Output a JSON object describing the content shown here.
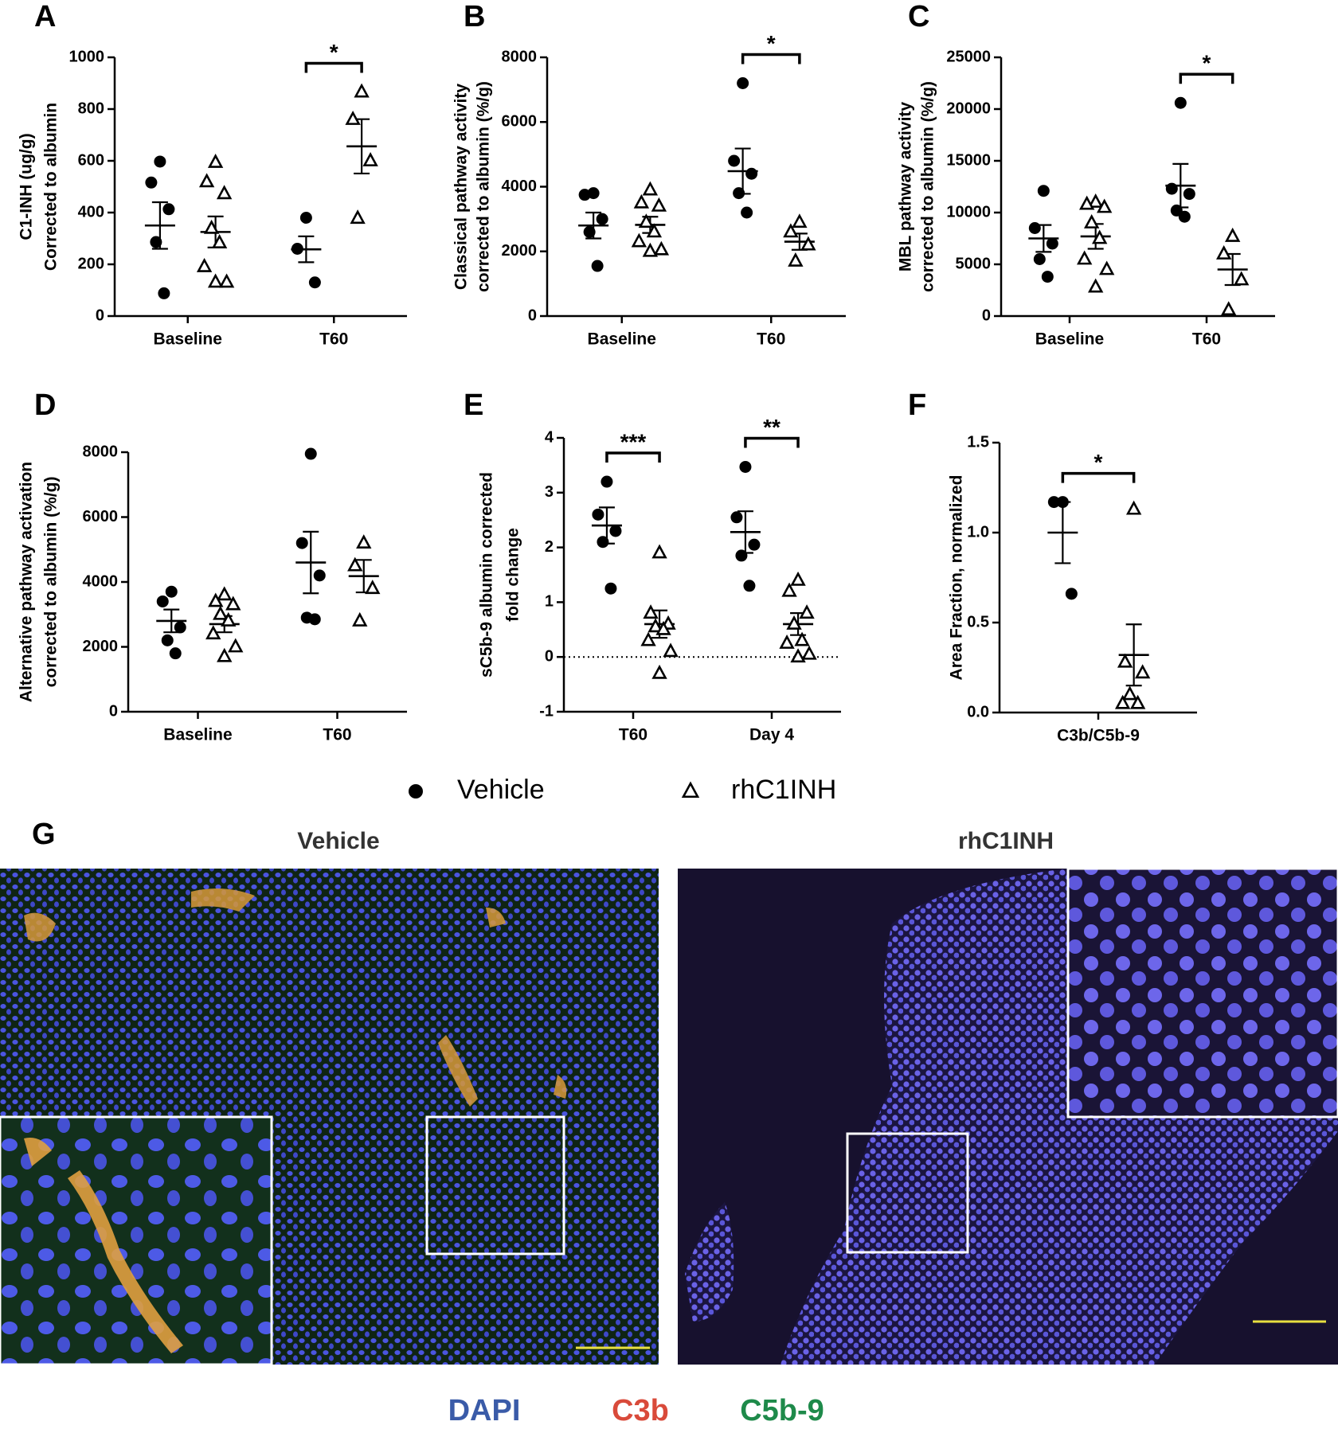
{
  "legend": [
    {
      "name": "Vehicle",
      "marker": "circle"
    },
    {
      "name": "rhC1INH",
      "marker": "triangle"
    }
  ],
  "chart_data": [
    {
      "type": "dot",
      "label": "A",
      "ylabel": [
        "C1-INH (ug/g)",
        "Corrected to albumin"
      ],
      "categories": [
        "Baseline",
        "T60"
      ],
      "ylim": [
        0,
        1000
      ],
      "yticks": [
        0,
        200,
        400,
        600,
        800,
        1000
      ],
      "series": [
        {
          "marker": "circle",
          "color": "#000000",
          "values": [
            [
              597,
              516,
              413,
              286,
              88
            ],
            [
              380,
              260,
              130
            ]
          ],
          "mean": [
            350,
            258
          ],
          "sem": [
            90,
            50
          ]
        },
        {
          "marker": "triangle",
          "color": "#000000",
          "values": [
            [
              594,
              519,
              473,
              339,
              283,
              191,
              131,
              131
            ],
            [
              866,
              760,
              600,
              378
            ]
          ],
          "mean": [
            325,
            656
          ],
          "sem": [
            60,
            105
          ]
        }
      ],
      "significance": [
        {
          "category": "T60",
          "label": "*"
        }
      ]
    },
    {
      "type": "dot",
      "label": "B",
      "ylabel": [
        "Classical pathway activity",
        "corrected to albumin (%/g)"
      ],
      "categories": [
        "Baseline",
        "T60"
      ],
      "ylim": [
        0,
        8000
      ],
      "yticks": [
        0,
        2000,
        4000,
        6000,
        8000
      ],
      "series": [
        {
          "marker": "circle",
          "color": "#000000",
          "values": [
            [
              3800,
              3750,
              3000,
              2600,
              1550
            ],
            [
              7200,
              4800,
              4400,
              3800,
              3200
            ]
          ],
          "mean": [
            2800,
            4480
          ],
          "sem": [
            400,
            700
          ]
        },
        {
          "marker": "triangle",
          "color": "#000000",
          "values": [
            [
              3900,
              3500,
              3400,
              2900,
              2600,
              2300,
              2050,
              2000
            ],
            [
              2900,
              2600,
              2200,
              1700
            ]
          ],
          "mean": [
            2820,
            2300
          ],
          "sem": [
            250,
            250
          ]
        }
      ],
      "significance": [
        {
          "category": "T60",
          "label": "*"
        }
      ]
    },
    {
      "type": "dot",
      "label": "C",
      "ylabel": [
        "MBL pathway activity",
        "corrected to albumin (%/g)"
      ],
      "categories": [
        "Baseline",
        "T60"
      ],
      "ylim": [
        0,
        25000
      ],
      "yticks": [
        0,
        5000,
        10000,
        15000,
        20000,
        25000
      ],
      "series": [
        {
          "marker": "circle",
          "color": "#000000",
          "values": [
            [
              12100,
              8500,
              7000,
              5500,
              3800
            ],
            [
              20600,
              12300,
              11800,
              10200,
              9600
            ]
          ],
          "mean": [
            7500,
            12600
          ],
          "sem": [
            1300,
            2100
          ]
        },
        {
          "marker": "triangle",
          "color": "#000000",
          "values": [
            [
              11000,
              10800,
              10500,
              9000,
              7500,
              5500,
              4500,
              2800
            ],
            [
              7700,
              6000,
              3500,
              600
            ]
          ],
          "mean": [
            7700,
            4500
          ],
          "sem": [
            1200,
            1500
          ]
        }
      ],
      "significance": [
        {
          "category": "T60",
          "label": "*"
        }
      ]
    },
    {
      "type": "dot",
      "label": "D",
      "ylabel": [
        "Alternative pathway activation",
        "corrected to albumin (%/g)"
      ],
      "categories": [
        "Baseline",
        "T60"
      ],
      "ylim": [
        0,
        8000
      ],
      "yticks": [
        0,
        2000,
        4000,
        6000,
        8000
      ],
      "series": [
        {
          "marker": "circle",
          "color": "#000000",
          "values": [
            [
              3700,
              3400,
              2600,
              2200,
              1800
            ],
            [
              7950,
              5200,
              4200,
              2900,
              2850
            ]
          ],
          "mean": [
            2800,
            4600
          ],
          "sem": [
            350,
            950
          ]
        },
        {
          "marker": "triangle",
          "color": "#000000",
          "values": [
            [
              3600,
              3400,
              3300,
              3000,
              2800,
              2400,
              2000,
              1700
            ],
            [
              5200,
              4500,
              3800,
              2800
            ]
          ],
          "mean": [
            2700,
            4180
          ],
          "sem": [
            250,
            500
          ]
        }
      ],
      "significance": []
    },
    {
      "type": "dot",
      "label": "E",
      "ylabel": [
        "sC5b-9 albumin corrected",
        "fold change"
      ],
      "categories": [
        "T60",
        "Day 4"
      ],
      "ylim": [
        -1,
        4
      ],
      "yticks": [
        -1,
        0,
        1,
        2,
        3,
        4
      ],
      "zero_line": true,
      "series": [
        {
          "marker": "circle",
          "color": "#000000",
          "values": [
            [
              3.2,
              2.6,
              2.3,
              2.1,
              1.25
            ],
            [
              3.47,
              2.55,
              2.05,
              1.85,
              1.3
            ]
          ],
          "mean": [
            2.4,
            2.28
          ],
          "sem": [
            0.33,
            0.38
          ]
        },
        {
          "marker": "triangle",
          "color": "#000000",
          "values": [
            [
              1.9,
              0.8,
              0.6,
              0.55,
              0.5,
              0.3,
              0.1,
              -0.3
            ],
            [
              1.4,
              1.2,
              0.8,
              0.6,
              0.3,
              0.25,
              0.05,
              0.0
            ]
          ],
          "mean": [
            0.6,
            0.6
          ],
          "sem": [
            0.25,
            0.2
          ]
        }
      ],
      "significance": [
        {
          "category": "T60",
          "label": "***"
        },
        {
          "category": "Day 4",
          "label": "**"
        }
      ]
    },
    {
      "type": "dot",
      "label": "F",
      "ylabel": [
        "Area Fraction, normalized"
      ],
      "categories": [
        "C3b/C5b-9"
      ],
      "ylim": [
        0,
        1.5
      ],
      "yticks": [
        {
          "value": 0,
          "label": "0.0"
        },
        0.5,
        {
          "value": 1,
          "label": "1.0"
        },
        1.5
      ],
      "series": [
        {
          "marker": "circle",
          "color": "#000000",
          "values": [
            [
              1.17,
              1.17,
              0.66
            ]
          ],
          "mean": [
            1.0
          ],
          "sem": [
            0.17
          ]
        },
        {
          "marker": "triangle",
          "color": "#000000",
          "values": [
            [
              1.13,
              0.28,
              0.22,
              0.1,
              0.05,
              0.05
            ]
          ],
          "mean": [
            0.32
          ],
          "sem": [
            0.17
          ]
        }
      ],
      "significance": [
        {
          "category": "C3b/C5b-9",
          "label": "*"
        }
      ]
    }
  ],
  "panel_g": {
    "label": "G",
    "titles": [
      "Vehicle",
      "rhC1INH"
    ],
    "stains": [
      {
        "name": "DAPI",
        "color": "#3a5ba8"
      },
      {
        "name": "C3b",
        "color": "#d94a3a"
      },
      {
        "name": "C5b-9",
        "color": "#1e8a4a"
      }
    ]
  }
}
